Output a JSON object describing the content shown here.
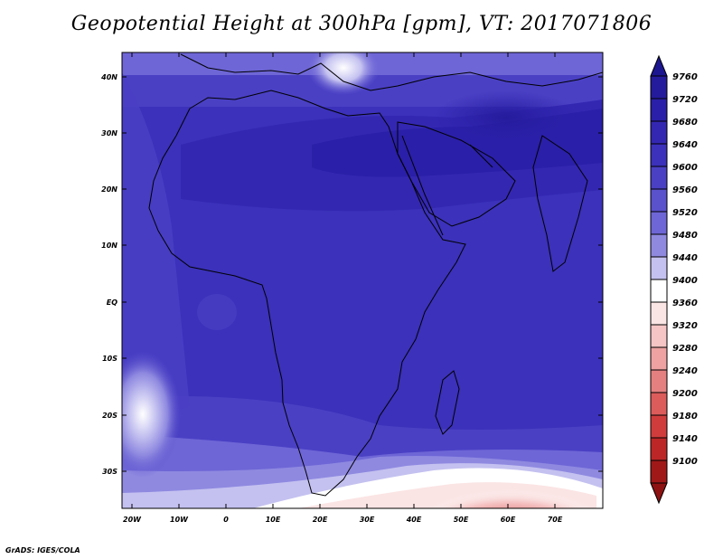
{
  "title": "Geopotential Height at 300hPa [gpm], VT: 2017071806",
  "footer": "GrADS: IGES/COLA",
  "map": {
    "lat_ticks": [
      "40N",
      "30N",
      "20N",
      "10N",
      "EQ",
      "10S",
      "20S",
      "30S"
    ],
    "lon_ticks": [
      "20W",
      "10W",
      "0",
      "10E",
      "20E",
      "30E",
      "40E",
      "50E",
      "60E",
      "70E"
    ]
  },
  "colorbar": {
    "levels": [
      "9760",
      "9720",
      "9680",
      "9640",
      "9600",
      "9560",
      "9520",
      "9480",
      "9440",
      "9400",
      "9360",
      "9320",
      "9280",
      "9240",
      "9200",
      "9180",
      "9140",
      "9100"
    ],
    "colors": [
      "#241b9c",
      "#2a1fa8",
      "#3327b2",
      "#3b31ba",
      "#4a40c4",
      "#5a51cc",
      "#6e66d6",
      "#8f89e0",
      "#c4c1f0",
      "#ffffff",
      "#fbe4e4",
      "#f5c4c4",
      "#eea2a2",
      "#e58080",
      "#dc5c5c",
      "#d03c3c",
      "#bd2626",
      "#a01818"
    ],
    "top_color": "#1c1690",
    "bottom_color": "#8e1212"
  }
}
